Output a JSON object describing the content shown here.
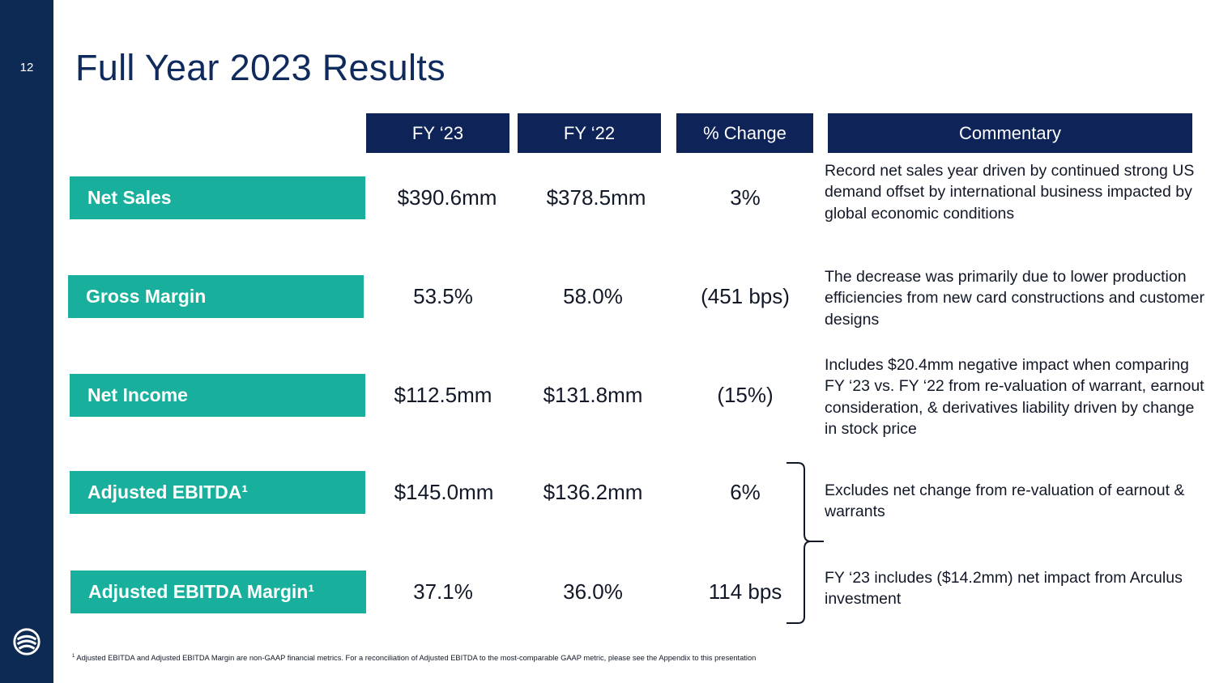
{
  "slide": {
    "page_number": "12",
    "title": "Full Year 2023 Results"
  },
  "columns": [
    "FY ‘23",
    "FY ‘22",
    "% Change",
    "Commentary"
  ],
  "rows": [
    {
      "label": "Net Sales",
      "fy23": "$390.6mm",
      "fy22": "$378.5mm",
      "change": "3%",
      "commentary": "Record net sales year driven by continued strong US demand offset by international business impacted by global economic conditions"
    },
    {
      "label": "Gross Margin",
      "fy23": "53.5%",
      "fy22": "58.0%",
      "change": "(451 bps)",
      "commentary": "The decrease was primarily due to lower production efficiencies from new card constructions and customer designs"
    },
    {
      "label": "Net Income",
      "fy23": "$112.5mm",
      "fy22": "$131.8mm",
      "change": "(15%)",
      "commentary": "Includes $20.4mm negative impact when comparing FY ‘23 vs. FY ‘22 from re-valuation of warrant, earnout consideration, & derivatives liability driven by change in stock price"
    },
    {
      "label": "Adjusted EBITDA¹",
      "fy23": "$145.0mm",
      "fy22": "$136.2mm",
      "change": "6%",
      "commentary": "Excludes net change from re-valuation of earnout & warrants"
    },
    {
      "label": "Adjusted EBITDA Margin¹",
      "fy23": "37.1%",
      "fy22": "36.0%",
      "change": "114 bps",
      "commentary": "FY ‘23 includes ($14.2mm) net impact from Arculus investment"
    }
  ],
  "footnote": {
    "marker": "1",
    "text": "Adjusted EBITDA and Adjusted EBITDA Margin are non-GAAP financial metrics. For a reconciliation of Adjusted EBITDA to the most-comparable GAAP metric, please see the Appendix to this presentation"
  },
  "colors": {
    "sidebar": "#0d2a55",
    "header_bg": "#0e2459",
    "label_bg": "#18b09c",
    "title": "#0f2a5c"
  },
  "icons": {
    "logo": "company-logo-icon",
    "brace": "right-brace-icon"
  }
}
